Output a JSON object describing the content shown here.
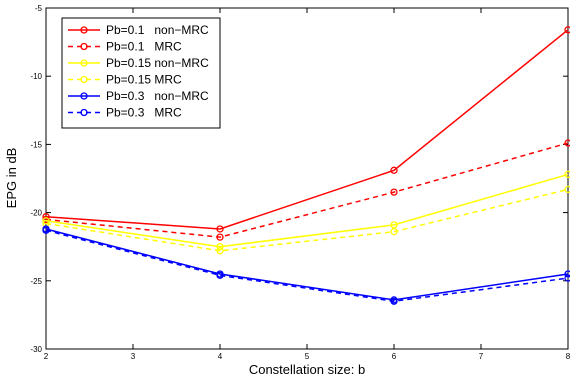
{
  "chart_data": {
    "type": "line",
    "xlabel": "Constellation size: b",
    "ylabel": "EPG in dB",
    "xlim": [
      2,
      8
    ],
    "ylim": [
      -30,
      -5
    ],
    "xticks": [
      "2",
      "3",
      "4",
      "5",
      "6",
      "7",
      "8"
    ],
    "yticks": [
      "-5",
      "-10",
      "-15",
      "-20",
      "-25",
      "-30"
    ],
    "x": [
      2,
      4,
      6,
      8
    ],
    "grid": false,
    "legend_position": "top-left",
    "series": [
      {
        "name": "Pb=0.1   non−MRC",
        "values": [
          -20.3,
          -21.2,
          -16.9,
          -6.6
        ],
        "color": "#ff0000",
        "dashed": false
      },
      {
        "name": "Pb=0.1   MRC",
        "values": [
          -20.5,
          -21.8,
          -18.5,
          -14.9
        ],
        "color": "#ff0000",
        "dashed": true
      },
      {
        "name": "Pb=0.15 non−MRC",
        "values": [
          -20.6,
          -22.5,
          -20.9,
          -17.2
        ],
        "color": "#ffff00",
        "dashed": false
      },
      {
        "name": "Pb=0.15 MRC",
        "values": [
          -20.8,
          -22.8,
          -21.4,
          -18.3
        ],
        "color": "#ffff00",
        "dashed": true
      },
      {
        "name": "Pb=0.3   non−MRC",
        "values": [
          -21.2,
          -24.5,
          -26.4,
          -24.5
        ],
        "color": "#0000ff",
        "dashed": false
      },
      {
        "name": "Pb=0.3   MRC",
        "values": [
          -21.3,
          -24.6,
          -26.5,
          -24.8
        ],
        "color": "#0000ff",
        "dashed": true
      }
    ]
  }
}
